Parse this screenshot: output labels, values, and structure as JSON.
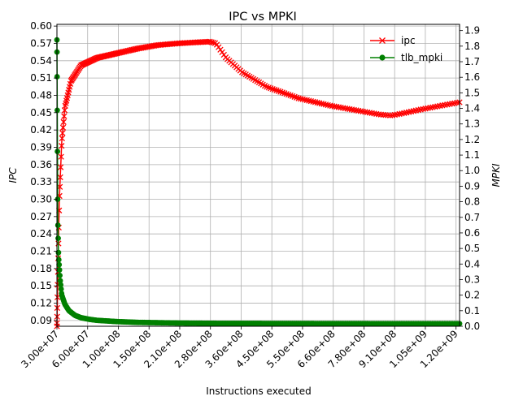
{
  "chart_data": {
    "type": "line",
    "title": "IPC vs MPKI",
    "xlabel": "Instructions executed",
    "ylabel_left": "IPC",
    "ylabel_right": "MPKI",
    "grid": true,
    "legend_position": "top-right",
    "x_tick_labels": [
      "3.00e+07",
      "6.00e+07",
      "1.00e+08",
      "1.50e+08",
      "2.10e+08",
      "2.80e+08",
      "3.60e+08",
      "4.50e+08",
      "5.50e+08",
      "6.60e+08",
      "7.80e+08",
      "9.10e+08",
      "1.05e+09",
      "1.20e+09"
    ],
    "y_left_ticks": [
      "0.09",
      "0.12",
      "0.15",
      "0.18",
      "0.21",
      "0.24",
      "0.27",
      "0.30",
      "0.33",
      "0.36",
      "0.39",
      "0.42",
      "0.45",
      "0.48",
      "0.51",
      "0.54",
      "0.57",
      "0.60"
    ],
    "y_right_ticks": [
      "0.0",
      "0.1",
      "0.2",
      "0.3",
      "0.4",
      "0.5",
      "0.6",
      "0.7",
      "0.8",
      "0.9",
      "1.0",
      "1.1",
      "1.2",
      "1.3",
      "1.4",
      "1.5",
      "1.6",
      "1.7",
      "1.8",
      "1.9"
    ],
    "y_left_range": [
      0.08,
      0.603
    ],
    "y_right_range": [
      0.0,
      1.94
    ],
    "x_range_index": [
      0,
      1000
    ],
    "series": [
      {
        "name": "ipc",
        "axis": "left",
        "color": "#ff0000",
        "marker": "x",
        "x": [
          0,
          2,
          6,
          12,
          20,
          35,
          60,
          100,
          150,
          200,
          250,
          300,
          350,
          380,
          395,
          420,
          460,
          520,
          600,
          680,
          760,
          800,
          830,
          860,
          900,
          960,
          1000
        ],
        "y": [
          0.08,
          0.16,
          0.3,
          0.4,
          0.46,
          0.505,
          0.532,
          0.545,
          0.553,
          0.561,
          0.567,
          0.57,
          0.572,
          0.573,
          0.57,
          0.545,
          0.52,
          0.495,
          0.475,
          0.462,
          0.452,
          0.447,
          0.445,
          0.449,
          0.455,
          0.463,
          0.468
        ]
      },
      {
        "name": "tlb_mpki",
        "axis": "right",
        "color": "#008000",
        "marker": "o",
        "x": [
          0,
          2,
          4,
          8,
          12,
          20,
          30,
          45,
          60,
          80,
          100,
          150,
          200,
          300,
          400,
          600,
          800,
          1000
        ],
        "y": [
          1.84,
          0.7,
          0.45,
          0.3,
          0.2,
          0.14,
          0.1,
          0.07,
          0.055,
          0.045,
          0.038,
          0.03,
          0.025,
          0.021,
          0.019,
          0.018,
          0.017,
          0.017
        ]
      }
    ]
  }
}
